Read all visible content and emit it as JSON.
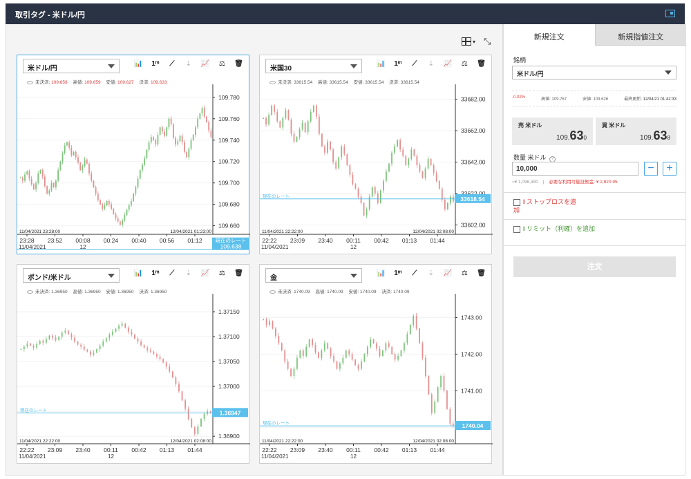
{
  "window": {
    "title": "取引タグ - 米ドル/円"
  },
  "toolbar": {
    "layout_caret": "▾",
    "expand_glyph": "⤡"
  },
  "tools": [
    "📊",
    "1ᵐ",
    "⟋",
    "⇣",
    "📈",
    "⚖",
    "🗑"
  ],
  "panels": [
    {
      "symbol": "米ドル/円",
      "ohlc": {
        "open_label": "未決済:",
        "open": "109.659",
        "high_label": "高値:",
        "high": "109.659",
        "low_label": "安値:",
        "low": "109.627",
        "close_label": "決済:",
        "close": "109.633"
      },
      "y_ticks": [
        "109.780",
        "109.760",
        "109.740",
        "109.720",
        "109.700",
        "109.680",
        "109.660"
      ],
      "y_min": 109.652,
      "y_max": 109.787,
      "rate": "109.638",
      "rate_label": "現在のレート",
      "start_stamp": "11/04/2021 23:28:00",
      "end_stamp": "12/04/2021 01:23:00",
      "x_ticks": [
        "23:28",
        "23:52",
        "00:08",
        "00:24",
        "00:40",
        "00:56",
        "01:12"
      ],
      "x_sub": [
        "11/04/2021",
        "",
        "12",
        "",
        "",
        "",
        ""
      ],
      "series": [
        109.705,
        109.702,
        109.708,
        109.711,
        109.704,
        109.699,
        109.694,
        109.7,
        109.709,
        109.712,
        109.706,
        109.697,
        109.69,
        109.693,
        109.7,
        109.696,
        109.702,
        109.712,
        109.72,
        109.728,
        109.735,
        109.738,
        109.733,
        109.726,
        109.729,
        109.724,
        109.719,
        109.712,
        109.716,
        109.722,
        109.718,
        109.709,
        109.702,
        109.696,
        109.69,
        109.684,
        109.68,
        109.676,
        109.679,
        109.683,
        109.68,
        109.676,
        109.671,
        109.667,
        109.664,
        109.661,
        109.665,
        109.67,
        109.675,
        109.679,
        109.683,
        109.69,
        109.696,
        109.704,
        109.712,
        109.717,
        109.723,
        109.731,
        109.738,
        109.743,
        109.74,
        109.736,
        109.745,
        109.752,
        109.748,
        109.744,
        109.752,
        109.76,
        109.755,
        109.742,
        109.736,
        109.739,
        109.744,
        109.738,
        109.729,
        109.724,
        109.732,
        109.74,
        109.745,
        109.752,
        109.76,
        109.765,
        109.77,
        109.762,
        109.757,
        109.749,
        109.743
      ]
    },
    {
      "symbol": "米国30",
      "ohlc": {
        "open_label": "未決済:",
        "open": "33615.54",
        "high_label": "高値:",
        "high": "33615.54",
        "low_label": "安値:",
        "low": "33615.54",
        "close_label": "決済:",
        "close": "33615.54"
      },
      "y_ticks": [
        "33682.00",
        "33662.00",
        "33642.00",
        "33622.00",
        "33602.00"
      ],
      "y_min": 33596,
      "y_max": 33688,
      "rate": "33618.54",
      "rate_label": "現在のレート",
      "start_stamp": "11/04/2021 22:22:00",
      "end_stamp": "12/04/2021 02:08:00",
      "x_ticks": [
        "22:22",
        "23:09",
        "23:40",
        "00:11",
        "00:42",
        "01:13",
        "01:44"
      ],
      "x_sub": [
        "11/04/2021",
        "",
        "",
        "12",
        "",
        "",
        ""
      ],
      "series": [
        33670,
        33666,
        33672,
        33678,
        33674,
        33668,
        33664,
        33670,
        33675,
        33669,
        33660,
        33655,
        33658,
        33663,
        33667,
        33661,
        33668,
        33674,
        33678,
        33671,
        33660,
        33652,
        33648,
        33655,
        33650,
        33642,
        33638,
        33645,
        33652,
        33647,
        33640,
        33634,
        33628,
        33625,
        33620,
        33616,
        33608,
        33612,
        33620,
        33626,
        33622,
        33616,
        33624,
        33630,
        33636,
        33641,
        33648,
        33652,
        33656,
        33650,
        33646,
        33640,
        33644,
        33650,
        33646,
        33640,
        33636,
        33632,
        33638,
        33644,
        33640,
        33635,
        33630,
        33625,
        33618,
        33612,
        33616,
        33620,
        33617
      ]
    },
    {
      "symbol": "ポンド/米ドル",
      "ohlc": {
        "open_label": "未決済:",
        "open": "1.36950",
        "high_label": "高値:",
        "high": "1.36950",
        "low_label": "安値:",
        "low": "1.36950",
        "close_label": "決済:",
        "close": "1.36950"
      },
      "y_ticks": [
        "1.37150",
        "1.37100",
        "1.37050",
        "1.37000",
        "1.36950",
        "1.36900"
      ],
      "y_min": 1.36885,
      "y_max": 1.37175,
      "rate": "1.36947",
      "rate_label": "現在のレート",
      "start_stamp": "11/04/2021 22:22:00",
      "end_stamp": "12/04/2021 02:08:00",
      "x_ticks": [
        "22:22",
        "23:09",
        "23:40",
        "00:11",
        "00:42",
        "01:13",
        "01:44"
      ],
      "x_sub": [
        "11/04/2021",
        "",
        "",
        "12",
        "",
        "",
        ""
      ],
      "series": [
        1.37075,
        1.3708,
        1.37086,
        1.37082,
        1.37078,
        1.37085,
        1.37092,
        1.37088,
        1.37095,
        1.37102,
        1.37098,
        1.37093,
        1.371,
        1.37108,
        1.37112,
        1.37105,
        1.37098,
        1.3709,
        1.37084,
        1.3708,
        1.37074,
        1.3707,
        1.37064,
        1.37068,
        1.37075,
        1.37082,
        1.3709,
        1.37097,
        1.37104,
        1.3711,
        1.37116,
        1.37122,
        1.37126,
        1.37118,
        1.3711,
        1.37104,
        1.37096,
        1.3709,
        1.37083,
        1.37078,
        1.37073,
        1.3707,
        1.37065,
        1.3706,
        1.37055,
        1.37048,
        1.3704,
        1.3703,
        1.37018,
        1.37005,
        1.3699,
        1.36972,
        1.36955,
        1.36935,
        1.36918,
        1.36905,
        1.3692,
        1.36935,
        1.36945,
        1.3695,
        1.36947
      ]
    },
    {
      "symbol": "金",
      "ohlc": {
        "open_label": "未決済:",
        "open": "1740.09",
        "high_label": "高値:",
        "high": "1740.09",
        "low_label": "安値:",
        "low": "1740.09",
        "close_label": "決済:",
        "close": "1740.09"
      },
      "y_ticks": [
        "1743.00",
        "1742.00",
        "1741.00",
        "1740.00"
      ],
      "y_min": 1739.55,
      "y_max": 1743.5,
      "rate": "1740.04",
      "rate_label": "現在のレート",
      "start_stamp": "11/04/2021 22:22:00",
      "end_stamp": "12/04/2021 02:08:00",
      "x_ticks": [
        "22:22",
        "23:09",
        "23:40",
        "00:11",
        "00:42",
        "01:13",
        "01:44"
      ],
      "x_sub": [
        "11/04/2021",
        "",
        "",
        "12",
        "",
        "",
        ""
      ],
      "series": [
        1742.95,
        1742.8,
        1742.9,
        1742.7,
        1742.5,
        1742.3,
        1742.1,
        1741.8,
        1741.6,
        1741.4,
        1741.6,
        1741.9,
        1742.1,
        1741.95,
        1742.2,
        1742.4,
        1742.25,
        1742.05,
        1741.9,
        1742.1,
        1742.3,
        1742.15,
        1741.95,
        1741.8,
        1741.6,
        1741.75,
        1741.9,
        1742.1,
        1742.0,
        1741.85,
        1741.7,
        1741.6,
        1741.8,
        1742.0,
        1742.2,
        1742.4,
        1742.3,
        1742.15,
        1741.95,
        1742.1,
        1742.3,
        1742.2,
        1742.0,
        1741.85,
        1741.95,
        1742.1,
        1742.3,
        1742.55,
        1742.8,
        1743.05,
        1742.7,
        1742.3,
        1741.9,
        1741.4,
        1740.9,
        1740.4,
        1740.7,
        1741.1,
        1741.4,
        1741.0,
        1740.5,
        1740.1,
        1740.04
      ]
    }
  ],
  "order": {
    "tab_new": "新規注文",
    "tab_limit": "新規指値注文",
    "symbol_label": "銘柄",
    "symbol_value": "米ドル/円",
    "change": "-0.02%",
    "high_label": "高値:",
    "high": "109.767",
    "low_label": "安値:",
    "low": "109.626",
    "updated_label": "最終更新:",
    "updated": "12/04/21 01:42:33",
    "sell_label": "売 米ドル",
    "sell_prefix": "109.",
    "sell_big": "63",
    "sell_suffix": "0",
    "buy_label": "買 米ドル",
    "buy_prefix": "109.",
    "buy_big": "63",
    "buy_suffix": "8",
    "qty_label": "数量 米ドル",
    "help_glyph": "?",
    "qty_value": "10,000",
    "minus": "−",
    "plus": "+",
    "yen_equiv": "≈¥ 1,096,380",
    "separator": "|",
    "margin_text": "必要な利用可能証拠金: ¥ 2,820.95",
    "stop_mark": "I",
    "stop_label": "ストップロスを追加",
    "limit_mark": "I",
    "limit_label": "リミット（利確）を追加",
    "submit_label": "注文"
  },
  "colors": {
    "up": "#7cc47c",
    "down": "#e58f8f",
    "rate": "#5bc0eb",
    "active_border": "#4aa8e0",
    "header": "#2a3344"
  }
}
